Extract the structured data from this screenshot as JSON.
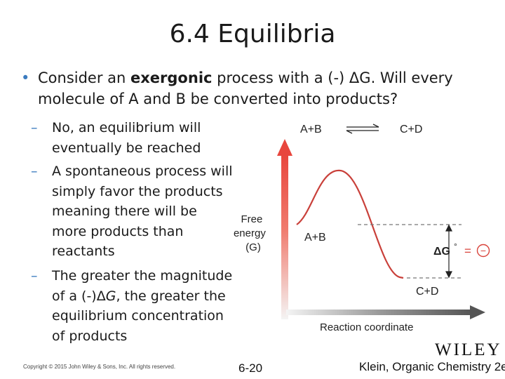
{
  "title": "6.4 Equilibria",
  "bullet": {
    "before": "Consider an ",
    "bold": "exergonic",
    "after": " process with a (-) ΔG. Will every molecule of A and B be converted into products?"
  },
  "subbullets": [
    {
      "dash": "–",
      "text": "No, an equilibrium will eventually be reached"
    },
    {
      "dash": "–",
      "text": "A spontaneous process will simply favor the products meaning there will be more products than reactants"
    },
    {
      "dash": "–",
      "before": "The greater the magnitude of a (-)Δ",
      "italic": "G",
      "after": ", the greater the equilibrium concentration of products"
    }
  ],
  "diagram": {
    "equation_left": "A+B",
    "equation_right": "C+D",
    "y_axis_label": [
      "Free",
      "energy",
      "(G)"
    ],
    "reactant_label": "A+B",
    "product_label": "C+D",
    "delta_g_symbol": "ΔG",
    "delta_g_superscript": "°",
    "delta_g_equals": "=",
    "delta_g_sign": "−",
    "x_axis_label": "Reaction coordinate",
    "colors": {
      "curve": "#c9403a",
      "arrow": "#e8463d",
      "axis": "#555555",
      "sign": "#d9443c"
    }
  },
  "footer": {
    "copyright": "Copyright © 2015 John Wiley & Sons, Inc. All rights reserved.",
    "page": "6-20",
    "publisher": "WILEY",
    "citation": "Klein, Organic Chemistry 2e"
  }
}
